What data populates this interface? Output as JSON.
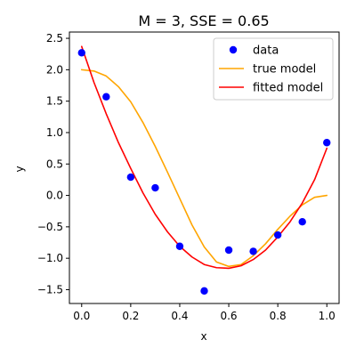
{
  "chart_data": {
    "type": "line",
    "title": "M = 3, SSE = 0.65",
    "xlabel": "x",
    "ylabel": "y",
    "xlim": [
      -0.05,
      1.05
    ],
    "ylim": [
      -1.72,
      2.6
    ],
    "xticks": [
      0.0,
      0.2,
      0.4,
      0.6,
      0.8,
      1.0
    ],
    "yticks": [
      -1.5,
      -1.0,
      -0.5,
      0.0,
      0.5,
      1.0,
      1.5,
      2.0,
      2.5
    ],
    "xtick_labels": [
      "0.0",
      "0.2",
      "0.4",
      "0.6",
      "0.8",
      "1.0"
    ],
    "ytick_labels": [
      "−1.5",
      "−1.0",
      "−0.5",
      "0.0",
      "0.5",
      "1.0",
      "1.5",
      "2.0",
      "2.5"
    ],
    "grid": false,
    "legend_position": "top-right",
    "series": [
      {
        "name": "data",
        "kind": "scatter",
        "color": "#0000ff",
        "x": [
          0.0,
          0.1,
          0.2,
          0.3,
          0.4,
          0.5,
          0.6,
          0.7,
          0.8,
          0.9,
          1.0
        ],
        "y": [
          2.27,
          1.57,
          0.29,
          0.12,
          -0.81,
          -1.52,
          -0.87,
          -0.89,
          -0.63,
          -0.42,
          0.84
        ]
      },
      {
        "name": "true model",
        "kind": "line",
        "color": "#ffa500",
        "x": [
          0.0,
          0.05,
          0.1,
          0.15,
          0.2,
          0.25,
          0.3,
          0.35,
          0.4,
          0.45,
          0.5,
          0.55,
          0.6,
          0.65,
          0.7,
          0.75,
          0.8,
          0.85,
          0.9,
          0.95,
          1.0
        ],
        "y": [
          2.0,
          1.98,
          1.9,
          1.73,
          1.49,
          1.16,
          0.78,
          0.37,
          -0.05,
          -0.47,
          -0.82,
          -1.06,
          -1.13,
          -1.1,
          -0.96,
          -0.77,
          -0.54,
          -0.33,
          -0.15,
          -0.03,
          0.0
        ]
      },
      {
        "name": "fitted model",
        "kind": "line",
        "color": "#ff0000",
        "x": [
          0.0,
          0.05,
          0.1,
          0.15,
          0.2,
          0.25,
          0.3,
          0.35,
          0.4,
          0.45,
          0.5,
          0.55,
          0.6,
          0.65,
          0.7,
          0.75,
          0.8,
          0.85,
          0.9,
          0.95,
          1.0
        ],
        "y": [
          2.37,
          1.8,
          1.3,
          0.84,
          0.43,
          0.04,
          -0.3,
          -0.58,
          -0.81,
          -0.98,
          -1.1,
          -1.15,
          -1.16,
          -1.12,
          -1.02,
          -0.87,
          -0.66,
          -0.42,
          -0.12,
          0.25,
          0.75
        ]
      }
    ]
  }
}
